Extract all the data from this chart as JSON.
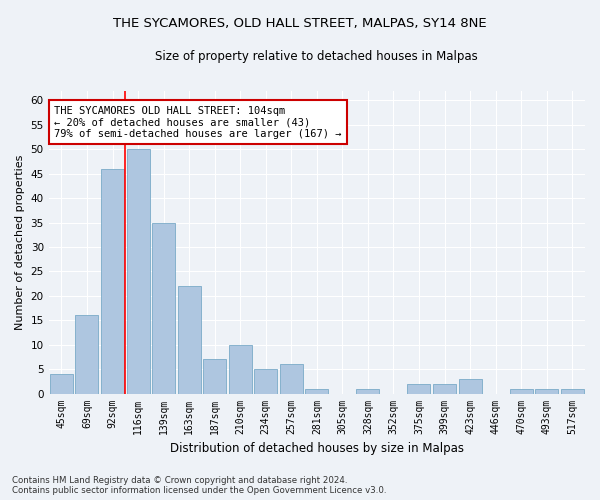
{
  "title": "THE SYCAMORES, OLD HALL STREET, MALPAS, SY14 8NE",
  "subtitle": "Size of property relative to detached houses in Malpas",
  "xlabel": "Distribution of detached houses by size in Malpas",
  "ylabel": "Number of detached properties",
  "categories": [
    "45sqm",
    "69sqm",
    "92sqm",
    "116sqm",
    "139sqm",
    "163sqm",
    "187sqm",
    "210sqm",
    "234sqm",
    "257sqm",
    "281sqm",
    "305sqm",
    "328sqm",
    "352sqm",
    "375sqm",
    "399sqm",
    "423sqm",
    "446sqm",
    "470sqm",
    "493sqm",
    "517sqm"
  ],
  "values": [
    4,
    16,
    46,
    50,
    35,
    22,
    7,
    10,
    5,
    6,
    1,
    0,
    1,
    0,
    2,
    2,
    3,
    0,
    1,
    1,
    1
  ],
  "bar_color": "#aec6e0",
  "bar_edge_color": "#7aaac8",
  "red_line_index": 2,
  "ylim": [
    0,
    62
  ],
  "yticks": [
    0,
    5,
    10,
    15,
    20,
    25,
    30,
    35,
    40,
    45,
    50,
    55,
    60
  ],
  "annotation_lines": [
    "THE SYCAMORES OLD HALL STREET: 104sqm",
    "← 20% of detached houses are smaller (43)",
    "79% of semi-detached houses are larger (167) →"
  ],
  "annotation_box_color": "#ffffff",
  "annotation_box_edge_color": "#cc0000",
  "background_color": "#eef2f7",
  "grid_color": "#ffffff",
  "footer": "Contains HM Land Registry data © Crown copyright and database right 2024.\nContains public sector information licensed under the Open Government Licence v3.0."
}
